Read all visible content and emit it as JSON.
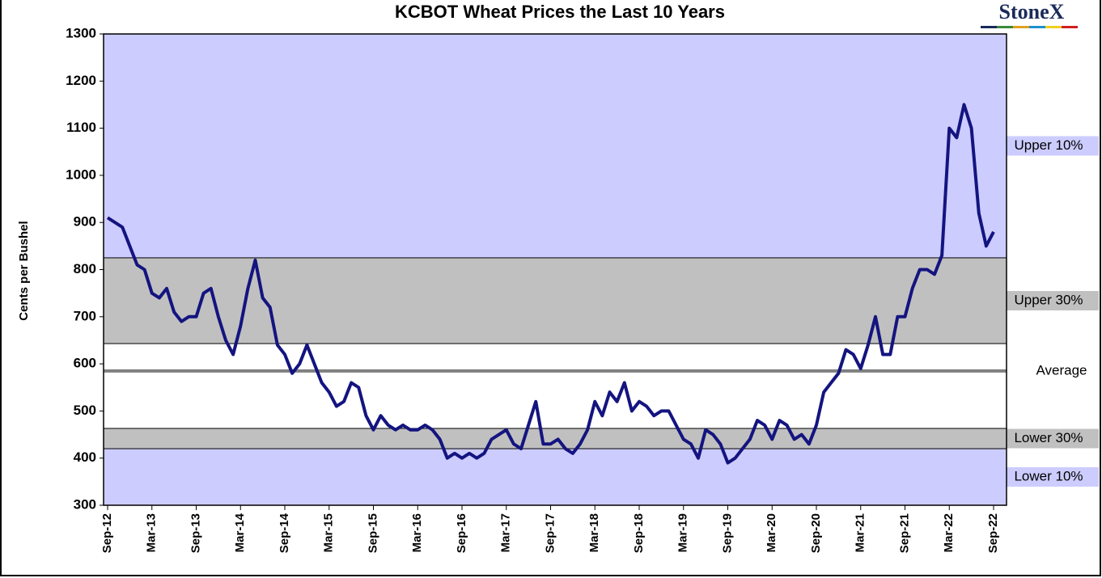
{
  "chart_data": {
    "type": "line",
    "title": "KCBOT Wheat Prices the Last 10 Years",
    "brand": "StoneX",
    "y_label": "Cents per Bushel",
    "background_color": "#ccccff",
    "x": [
      "2012-09",
      "2012-10",
      "2012-11",
      "2012-12",
      "2013-01",
      "2013-02",
      "2013-03",
      "2013-04",
      "2013-05",
      "2013-06",
      "2013-07",
      "2013-08",
      "2013-09",
      "2013-10",
      "2013-11",
      "2013-12",
      "2014-01",
      "2014-02",
      "2014-03",
      "2014-04",
      "2014-05",
      "2014-06",
      "2014-07",
      "2014-08",
      "2014-09",
      "2014-10",
      "2014-11",
      "2014-12",
      "2015-01",
      "2015-02",
      "2015-03",
      "2015-04",
      "2015-05",
      "2015-06",
      "2015-07",
      "2015-08",
      "2015-09",
      "2015-10",
      "2015-11",
      "2015-12",
      "2016-01",
      "2016-02",
      "2016-03",
      "2016-04",
      "2016-05",
      "2016-06",
      "2016-07",
      "2016-08",
      "2016-09",
      "2016-10",
      "2016-11",
      "2016-12",
      "2017-01",
      "2017-02",
      "2017-03",
      "2017-04",
      "2017-05",
      "2017-06",
      "2017-07",
      "2017-08",
      "2017-09",
      "2017-10",
      "2017-11",
      "2017-12",
      "2018-01",
      "2018-02",
      "2018-03",
      "2018-04",
      "2018-05",
      "2018-06",
      "2018-07",
      "2018-08",
      "2018-09",
      "2018-10",
      "2018-11",
      "2018-12",
      "2019-01",
      "2019-02",
      "2019-03",
      "2019-04",
      "2019-05",
      "2019-06",
      "2019-07",
      "2019-08",
      "2019-09",
      "2019-10",
      "2019-11",
      "2019-12",
      "2020-01",
      "2020-02",
      "2020-03",
      "2020-04",
      "2020-05",
      "2020-06",
      "2020-07",
      "2020-08",
      "2020-09",
      "2020-10",
      "2020-11",
      "2020-12",
      "2021-01",
      "2021-02",
      "2021-03",
      "2021-04",
      "2021-05",
      "2021-06",
      "2021-07",
      "2021-08",
      "2021-09",
      "2021-10",
      "2021-11",
      "2021-12",
      "2022-01",
      "2022-02",
      "2022-03",
      "2022-04",
      "2022-05",
      "2022-06",
      "2022-07",
      "2022-08",
      "2022-09"
    ],
    "series": [
      {
        "name": "KCBOT Wheat",
        "color": "#141480",
        "values": [
          910,
          900,
          890,
          850,
          810,
          800,
          750,
          740,
          760,
          710,
          690,
          700,
          700,
          750,
          760,
          700,
          650,
          620,
          680,
          760,
          820,
          740,
          720,
          640,
          620,
          580,
          600,
          640,
          600,
          560,
          540,
          510,
          520,
          560,
          550,
          490,
          460,
          490,
          470,
          460,
          470,
          460,
          460,
          470,
          460,
          440,
          400,
          410,
          400,
          410,
          400,
          410,
          440,
          450,
          460,
          430,
          420,
          470,
          520,
          430,
          430,
          440,
          420,
          410,
          430,
          460,
          520,
          490,
          540,
          520,
          560,
          500,
          520,
          510,
          490,
          500,
          500,
          470,
          440,
          430,
          400,
          460,
          450,
          430,
          390,
          400,
          420,
          440,
          480,
          470,
          440,
          480,
          470,
          440,
          450,
          430,
          470,
          540,
          560,
          580,
          630,
          620,
          590,
          640,
          700,
          620,
          620,
          700,
          700,
          760,
          800,
          800,
          790,
          830,
          1100,
          1080,
          1150,
          1100,
          920,
          850,
          880
        ]
      }
    ],
    "xlim": [
      "2012-09",
      "2022-09"
    ],
    "xticks": [
      {
        "value": "2012-09",
        "label": "Sep-12"
      },
      {
        "value": "2013-03",
        "label": "Mar-13"
      },
      {
        "value": "2013-09",
        "label": "Sep-13"
      },
      {
        "value": "2014-03",
        "label": "Mar-14"
      },
      {
        "value": "2014-09",
        "label": "Sep-14"
      },
      {
        "value": "2015-03",
        "label": "Mar-15"
      },
      {
        "value": "2015-09",
        "label": "Sep-15"
      },
      {
        "value": "2016-03",
        "label": "Mar-16"
      },
      {
        "value": "2016-09",
        "label": "Sep-16"
      },
      {
        "value": "2017-03",
        "label": "Mar-17"
      },
      {
        "value": "2017-09",
        "label": "Sep-17"
      },
      {
        "value": "2018-03",
        "label": "Mar-18"
      },
      {
        "value": "2018-09",
        "label": "Sep-18"
      },
      {
        "value": "2019-03",
        "label": "Mar-19"
      },
      {
        "value": "2019-09",
        "label": "Sep-19"
      },
      {
        "value": "2020-03",
        "label": "Mar-20"
      },
      {
        "value": "2020-09",
        "label": "Sep-20"
      },
      {
        "value": "2021-03",
        "label": "Mar-21"
      },
      {
        "value": "2021-09",
        "label": "Sep-21"
      },
      {
        "value": "2022-03",
        "label": "Mar-22"
      },
      {
        "value": "2022-09",
        "label": "Sep-22"
      }
    ],
    "ylim": [
      300,
      1300
    ],
    "yticks": [
      300,
      400,
      500,
      600,
      700,
      800,
      900,
      1000,
      1100,
      1200,
      1300
    ],
    "zones": [
      {
        "label": "Upper 10%",
        "color": "#ccccff",
        "from": 825,
        "to": 1300
      },
      {
        "label": "Upper 30%",
        "color": "#c0c0c0",
        "from": 643,
        "to": 825
      },
      {
        "label": "Average",
        "color": "#808080",
        "value": 585
      },
      {
        "label": "Lower 30%",
        "color": "#c0c0c0",
        "from": 420,
        "to": 463
      },
      {
        "label": "Lower 10%",
        "color": "#ccccff",
        "from": 300,
        "to": 420
      }
    ]
  }
}
